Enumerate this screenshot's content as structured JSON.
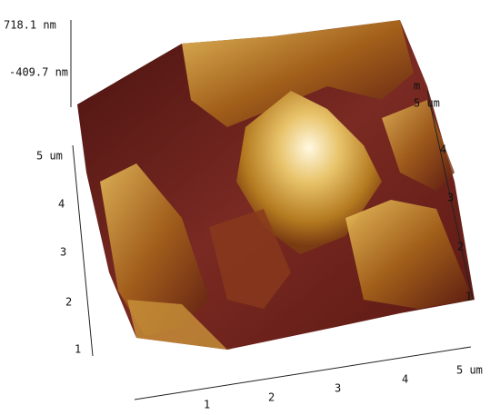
{
  "z_axis": {
    "max": "718.1 nm",
    "min": "-409.7 nm"
  },
  "y_axis": {
    "ticks": [
      "1",
      "2",
      "3",
      "4",
      "5 um"
    ]
  },
  "x_axis": {
    "ticks": [
      "1",
      "2",
      "3",
      "4",
      "5 um"
    ]
  },
  "right_axis": {
    "ticks": [
      "1",
      "2",
      "3",
      "4",
      "5 um"
    ],
    "fragment": "m"
  }
}
